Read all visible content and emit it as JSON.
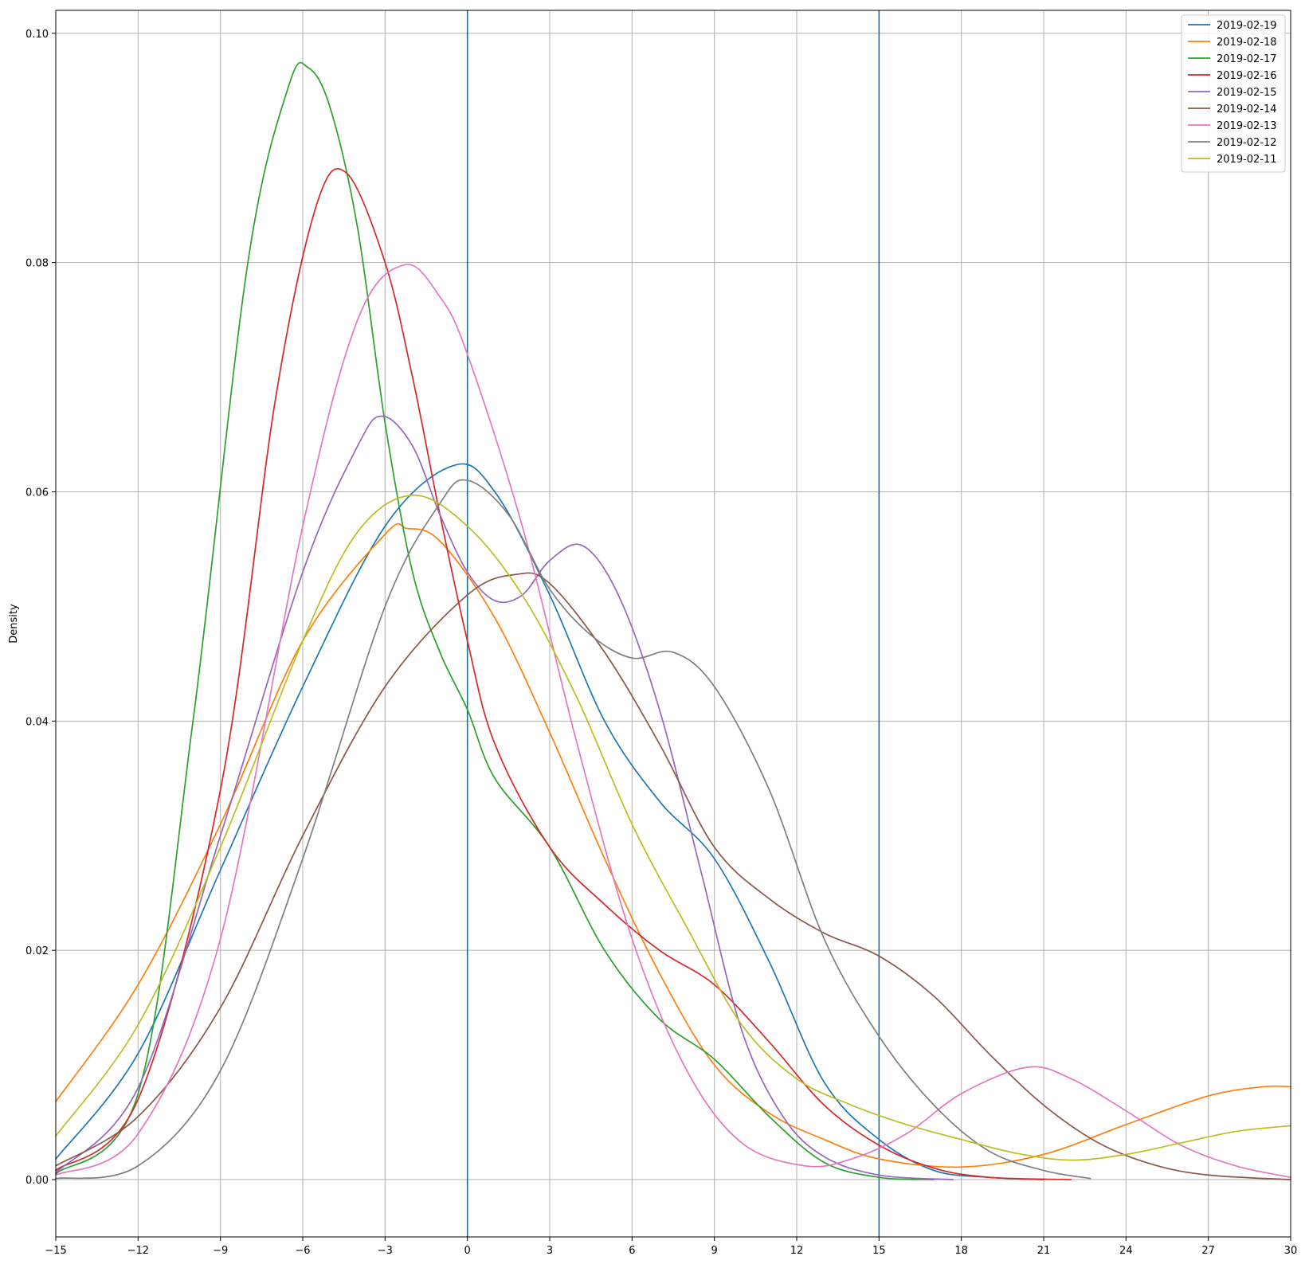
{
  "chart_data": {
    "type": "line",
    "title": "",
    "xlabel": "",
    "ylabel": "Density",
    "xlim": [
      -15,
      30
    ],
    "ylim": [
      -0.005,
      0.102
    ],
    "xticks": [
      -15,
      -12,
      -9,
      -6,
      -3,
      0,
      3,
      6,
      9,
      12,
      15,
      18,
      21,
      24,
      27,
      30
    ],
    "xtick_labels": [
      "−15",
      "−12",
      "−9",
      "−6",
      "−3",
      "0",
      "3",
      "6",
      "9",
      "12",
      "15",
      "18",
      "21",
      "24",
      "27",
      "30"
    ],
    "yticks": [
      0.0,
      0.02,
      0.04,
      0.06,
      0.08,
      0.1
    ],
    "ytick_labels": [
      "0.00",
      "0.02",
      "0.04",
      "0.06",
      "0.08",
      "0.10"
    ],
    "grid": true,
    "legend_position": "top-right",
    "vlines": [
      {
        "x": 0,
        "color": "#1f6f94"
      },
      {
        "x": 15,
        "color": "#1f6f94"
      }
    ],
    "series": [
      {
        "name": "2019-02-19",
        "color": "#1f77b4",
        "points": [
          [
            -15,
            0.0018
          ],
          [
            -12,
            0.011
          ],
          [
            -9,
            0.027
          ],
          [
            -6,
            0.043
          ],
          [
            -3,
            0.057
          ],
          [
            -0.5,
            0.0623
          ],
          [
            1,
            0.06
          ],
          [
            3,
            0.051
          ],
          [
            5,
            0.04
          ],
          [
            7,
            0.033
          ],
          [
            9,
            0.028
          ],
          [
            11,
            0.019
          ],
          [
            13,
            0.0085
          ],
          [
            15,
            0.0035
          ],
          [
            17,
            0.0008
          ],
          [
            19,
            0.0002
          ],
          [
            21,
            0.0
          ]
        ]
      },
      {
        "name": "2019-02-18",
        "color": "#ff7f0e",
        "points": [
          [
            -15,
            0.0068
          ],
          [
            -12,
            0.017
          ],
          [
            -9,
            0.031
          ],
          [
            -6,
            0.047
          ],
          [
            -3,
            0.0563
          ],
          [
            -2.2,
            0.0568
          ],
          [
            -1,
            0.0557
          ],
          [
            1,
            0.049
          ],
          [
            3,
            0.039
          ],
          [
            5,
            0.028
          ],
          [
            7,
            0.018
          ],
          [
            9,
            0.01
          ],
          [
            11,
            0.0058
          ],
          [
            13,
            0.0035
          ],
          [
            15,
            0.0018
          ],
          [
            18,
            0.0011
          ],
          [
            21,
            0.0022
          ],
          [
            24,
            0.0048
          ],
          [
            27,
            0.0073
          ],
          [
            29,
            0.0081
          ],
          [
            30,
            0.0081
          ]
        ]
      },
      {
        "name": "2019-02-17",
        "color": "#2ca02c",
        "points": [
          [
            -15,
            0.0005
          ],
          [
            -12,
            0.0075
          ],
          [
            -10,
            0.04
          ],
          [
            -8,
            0.08
          ],
          [
            -6.5,
            0.0955
          ],
          [
            -5.8,
            0.097
          ],
          [
            -5,
            0.0935
          ],
          [
            -4,
            0.083
          ],
          [
            -3,
            0.066
          ],
          [
            -2,
            0.053
          ],
          [
            -1,
            0.046
          ],
          [
            0,
            0.041
          ],
          [
            1,
            0.035
          ],
          [
            3,
            0.029
          ],
          [
            5,
            0.02
          ],
          [
            7,
            0.014
          ],
          [
            9,
            0.0105
          ],
          [
            11,
            0.0055
          ],
          [
            13,
            0.0015
          ],
          [
            15,
            0.0002
          ],
          [
            17,
            0.0
          ]
        ]
      },
      {
        "name": "2019-02-16",
        "color": "#d62728",
        "points": [
          [
            -15,
            0.0008
          ],
          [
            -12,
            0.007
          ],
          [
            -9,
            0.034
          ],
          [
            -7,
            0.068
          ],
          [
            -5.5,
            0.085
          ],
          [
            -4.4,
            0.0878
          ],
          [
            -3,
            0.08
          ],
          [
            -2,
            0.07
          ],
          [
            -1,
            0.058
          ],
          [
            0,
            0.047
          ],
          [
            1,
            0.038
          ],
          [
            3,
            0.029
          ],
          [
            5,
            0.024
          ],
          [
            7,
            0.02
          ],
          [
            9,
            0.017
          ],
          [
            11,
            0.012
          ],
          [
            13,
            0.0065
          ],
          [
            15,
            0.003
          ],
          [
            17,
            0.001
          ],
          [
            19,
            0.0002
          ],
          [
            22,
            0.0
          ]
        ]
      },
      {
        "name": "2019-02-15",
        "color": "#9467bd",
        "points": [
          [
            -15,
            0.0006
          ],
          [
            -12,
            0.008
          ],
          [
            -9,
            0.03
          ],
          [
            -6,
            0.053
          ],
          [
            -4,
            0.064
          ],
          [
            -3.1,
            0.0666
          ],
          [
            -2,
            0.064
          ],
          [
            -1,
            0.058
          ],
          [
            0,
            0.053
          ],
          [
            1,
            0.0505
          ],
          [
            2,
            0.051
          ],
          [
            3,
            0.054
          ],
          [
            4.2,
            0.0553
          ],
          [
            5.5,
            0.051
          ],
          [
            7,
            0.041
          ],
          [
            8.5,
            0.027
          ],
          [
            10,
            0.013
          ],
          [
            11.5,
            0.0055
          ],
          [
            13,
            0.002
          ],
          [
            15,
            0.0004
          ],
          [
            17.7,
            0.0
          ]
        ]
      },
      {
        "name": "2019-02-14",
        "color": "#8c564b",
        "points": [
          [
            -15,
            0.0012
          ],
          [
            -12,
            0.0055
          ],
          [
            -9,
            0.015
          ],
          [
            -6,
            0.03
          ],
          [
            -3,
            0.043
          ],
          [
            0,
            0.051
          ],
          [
            1.8,
            0.0528
          ],
          [
            3,
            0.052
          ],
          [
            5,
            0.046
          ],
          [
            7,
            0.038
          ],
          [
            9,
            0.029
          ],
          [
            11,
            0.0245
          ],
          [
            13,
            0.0215
          ],
          [
            15,
            0.0195
          ],
          [
            17,
            0.016
          ],
          [
            19,
            0.011
          ],
          [
            21,
            0.0065
          ],
          [
            23,
            0.0032
          ],
          [
            25,
            0.0013
          ],
          [
            27,
            0.0004
          ],
          [
            30,
            0.0
          ]
        ]
      },
      {
        "name": "2019-02-13",
        "color": "#e377c2",
        "points": [
          [
            -15,
            0.0004
          ],
          [
            -12,
            0.004
          ],
          [
            -9,
            0.021
          ],
          [
            -6,
            0.057
          ],
          [
            -4,
            0.075
          ],
          [
            -2.3,
            0.0798
          ],
          [
            -1,
            0.077
          ],
          [
            0,
            0.072
          ],
          [
            2,
            0.057
          ],
          [
            4,
            0.038
          ],
          [
            6,
            0.021
          ],
          [
            8,
            0.0095
          ],
          [
            10,
            0.0032
          ],
          [
            12.3,
            0.0012
          ],
          [
            14,
            0.0018
          ],
          [
            16,
            0.004
          ],
          [
            18,
            0.0075
          ],
          [
            20.4,
            0.0098
          ],
          [
            22,
            0.0088
          ],
          [
            24,
            0.006
          ],
          [
            26,
            0.003
          ],
          [
            28,
            0.0012
          ],
          [
            30,
            0.0002
          ]
        ]
      },
      {
        "name": "2019-02-12",
        "color": "#7f7f7f",
        "points": [
          [
            -15,
            0.0001
          ],
          [
            -12,
            0.0012
          ],
          [
            -9,
            0.0095
          ],
          [
            -6,
            0.028
          ],
          [
            -3,
            0.05
          ],
          [
            -1,
            0.059
          ],
          [
            0,
            0.061
          ],
          [
            1.5,
            0.058
          ],
          [
            3,
            0.0515
          ],
          [
            4.5,
            0.0475
          ],
          [
            6,
            0.0455
          ],
          [
            7.5,
            0.046
          ],
          [
            9,
            0.043
          ],
          [
            11,
            0.034
          ],
          [
            13,
            0.021
          ],
          [
            15,
            0.0125
          ],
          [
            17,
            0.0065
          ],
          [
            19,
            0.0025
          ],
          [
            21,
            0.0008
          ],
          [
            22.7,
            0.0001
          ]
        ]
      },
      {
        "name": "2019-02-11",
        "color": "#bcbd22",
        "points": [
          [
            -15,
            0.0038
          ],
          [
            -12,
            0.0135
          ],
          [
            -9,
            0.029
          ],
          [
            -6,
            0.047
          ],
          [
            -4,
            0.0565
          ],
          [
            -2,
            0.0597
          ],
          [
            0,
            0.057
          ],
          [
            2,
            0.051
          ],
          [
            4,
            0.042
          ],
          [
            6,
            0.031
          ],
          [
            8,
            0.022
          ],
          [
            10,
            0.0135
          ],
          [
            12,
            0.0088
          ],
          [
            14,
            0.0065
          ],
          [
            16,
            0.0048
          ],
          [
            18,
            0.0035
          ],
          [
            20,
            0.0023
          ],
          [
            22,
            0.0017
          ],
          [
            24,
            0.0022
          ],
          [
            26,
            0.0032
          ],
          [
            28,
            0.0042
          ],
          [
            30,
            0.0047
          ]
        ]
      }
    ]
  }
}
